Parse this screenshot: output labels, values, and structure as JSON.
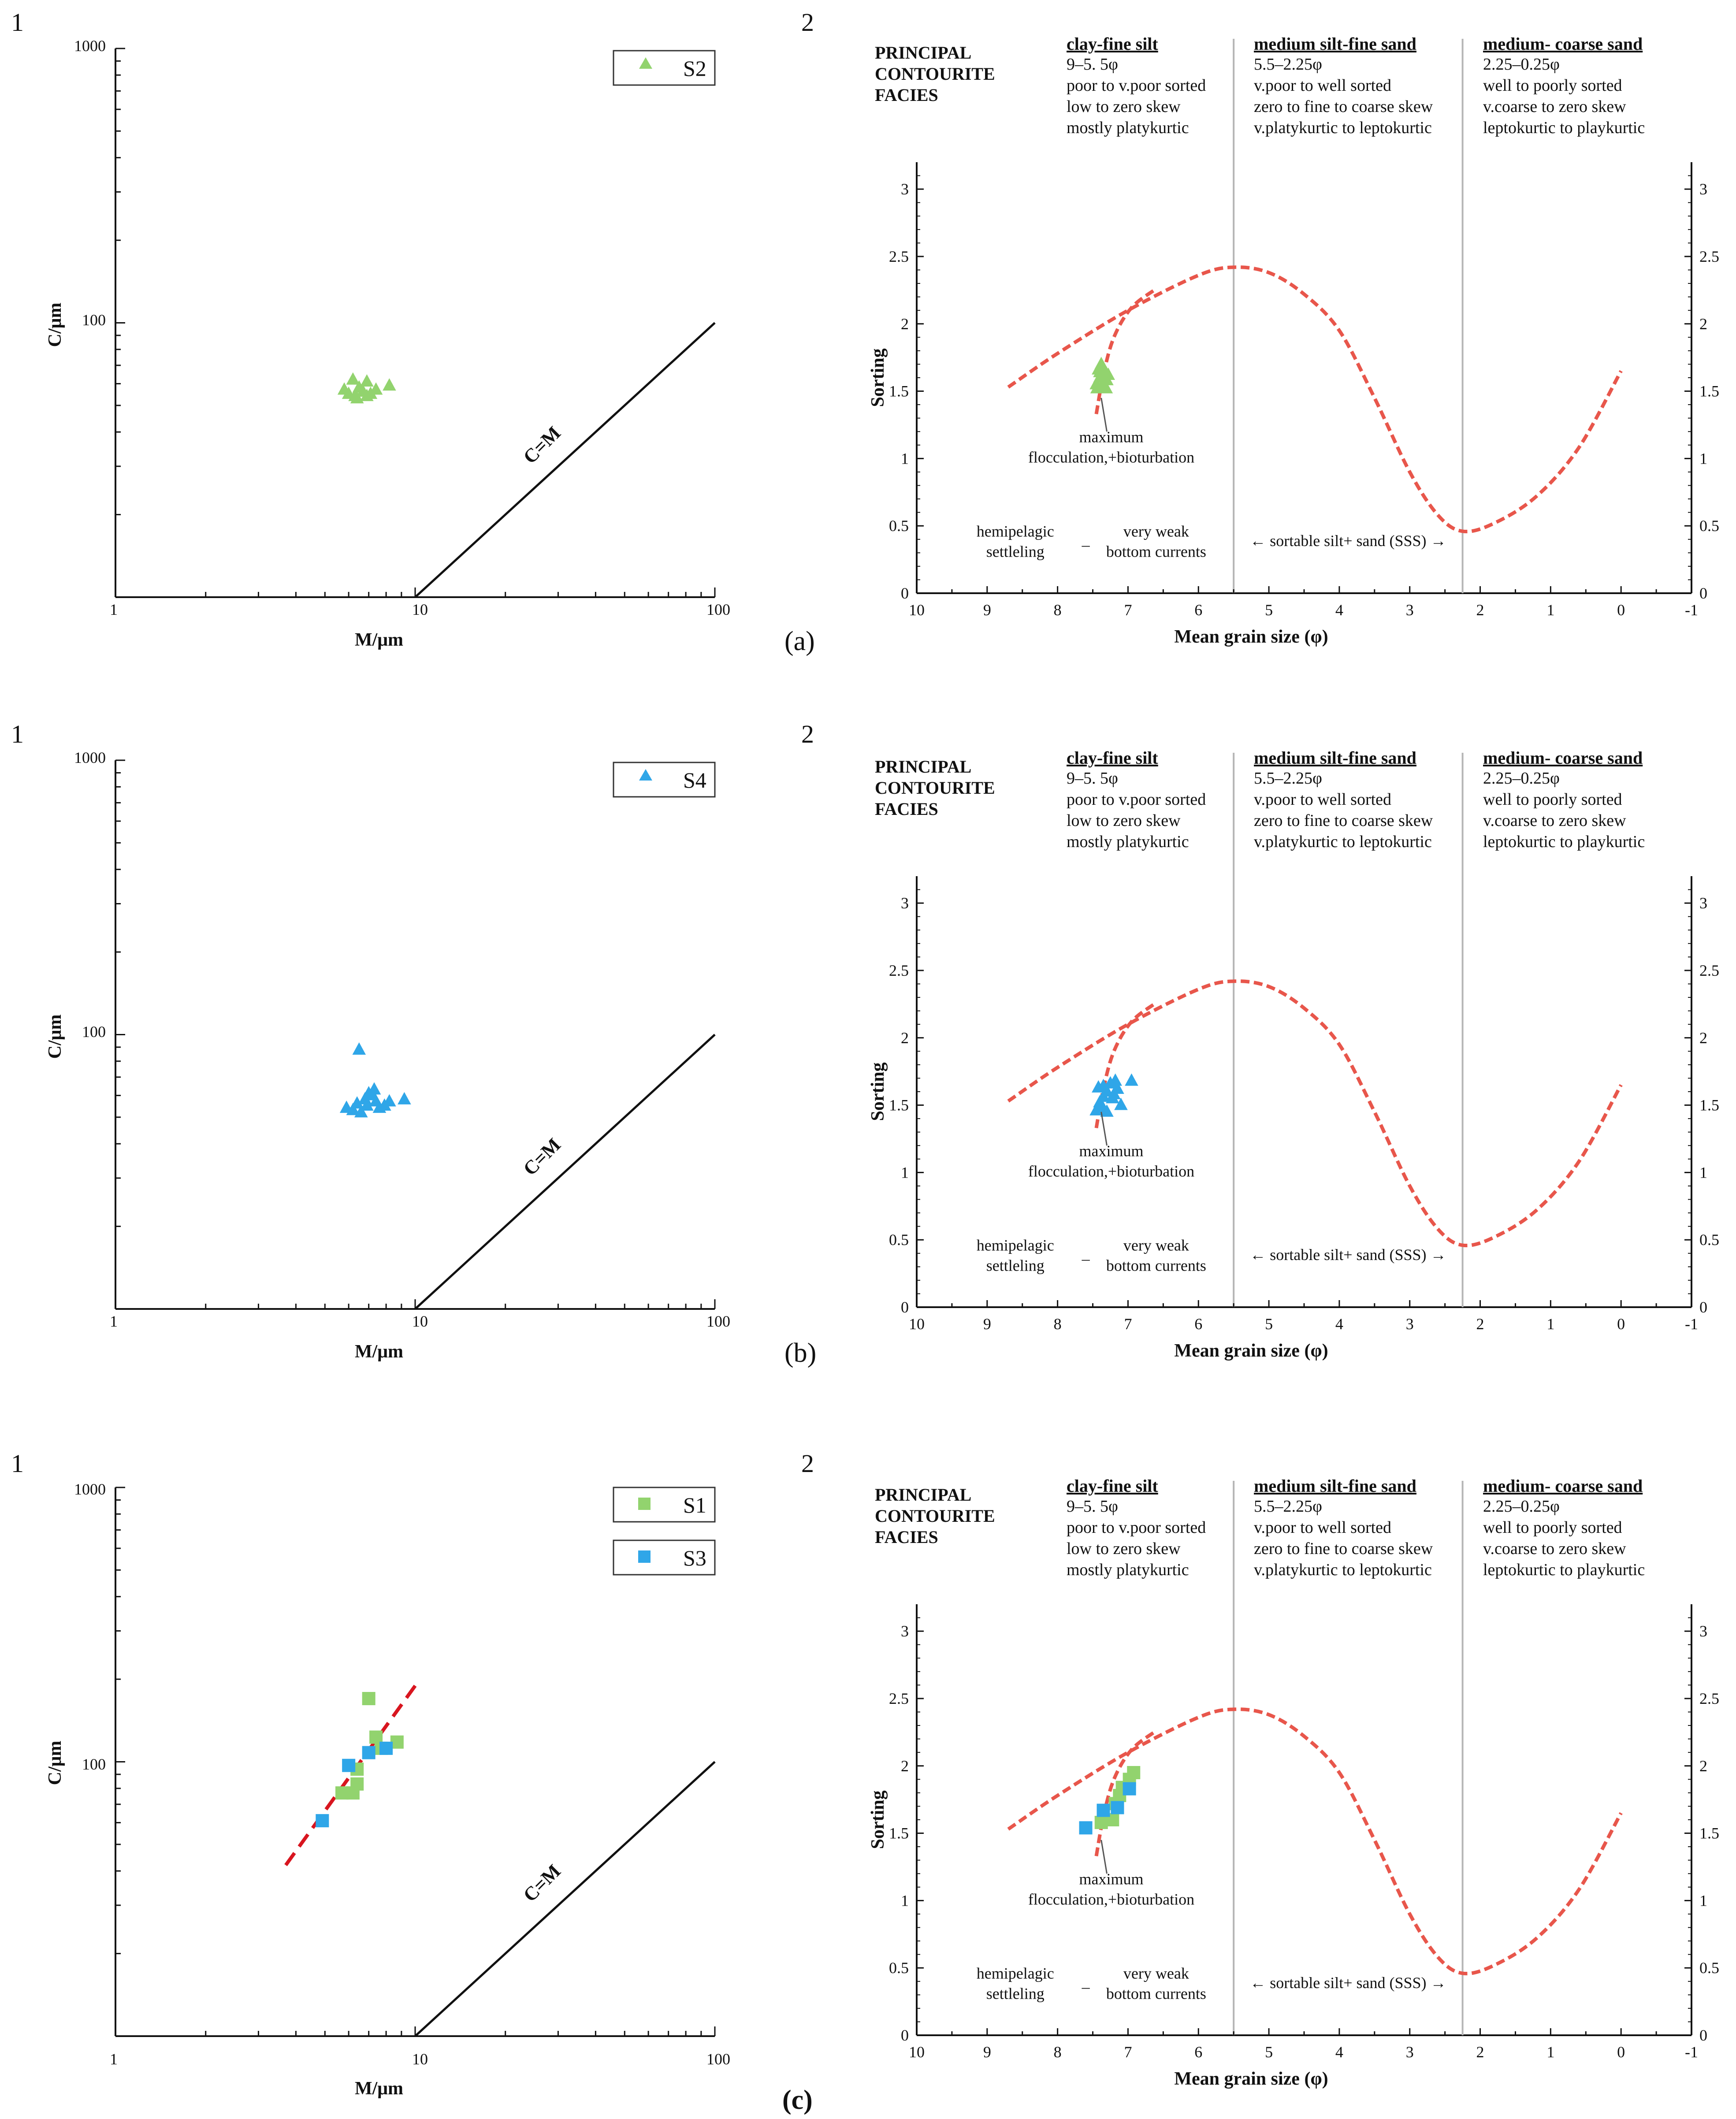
{
  "figure": {
    "panel_number_left": "1",
    "panel_number_right": "2",
    "panel_letters": [
      "(a)",
      "(b)",
      "(c)"
    ]
  },
  "colors": {
    "green": "#92d36e",
    "blue": "#2fa6e8",
    "curve": "#e8564b",
    "trend": "#d8151f",
    "axis": "#111111",
    "boundary": "#b5b5b5"
  },
  "sorting_labels": {
    "title": [
      "PRINCIPAL",
      "CONTOURITE",
      "FACIES"
    ],
    "zones": [
      {
        "heading": "clay-fine silt",
        "lines": [
          "9–5. 5φ",
          "poor to v.poor sorted",
          "low to zero skew",
          "mostly platykurtic"
        ]
      },
      {
        "heading": "medium silt-fine sand",
        "lines": [
          "5.5–2.25φ",
          "v.poor to well sorted",
          "zero to fine to coarse skew",
          "v.platykurtic to leptokurtic"
        ]
      },
      {
        "heading": "medium- coarse sand",
        "lines": [
          "2.25–0.25φ",
          "well to poorly sorted",
          "v.coarse to zero skew",
          "leptokurtic to playkurtic"
        ]
      }
    ],
    "annotation_flocculation": [
      "maximum",
      "flocculation,+bioturbation"
    ],
    "annotation_hemipelagic": [
      "hemipelagic",
      "settleling"
    ],
    "annotation_dash": "–",
    "annotation_weak": [
      "very weak",
      "bottom currents"
    ],
    "annotation_sss": "← sortable silt+ sand (SSS) →"
  },
  "chart_data": [
    {
      "type": "scatter",
      "id": "a1",
      "xscale": "log",
      "yscale": "log",
      "xlabel": "M/μm",
      "ylabel": "C/μm",
      "xlim": [
        1,
        100
      ],
      "ylim": [
        10,
        1000
      ],
      "xticks": [
        "1",
        "10",
        "100"
      ],
      "yticks": [
        "1000",
        "100"
      ],
      "reference_line": {
        "label": "C=M",
        "from": [
          10,
          10
        ],
        "to": [
          100,
          100
        ]
      },
      "series": [
        {
          "name": "S2",
          "marker": "triangle",
          "color": "#92d36e",
          "points": [
            [
              5.8,
              57
            ],
            [
              6.0,
              55
            ],
            [
              6.2,
              62
            ],
            [
              6.3,
              54
            ],
            [
              6.5,
              58
            ],
            [
              6.7,
              56
            ],
            [
              6.9,
              61
            ],
            [
              7.1,
              55
            ],
            [
              7.4,
              57
            ],
            [
              8.2,
              59
            ],
            [
              6.4,
              53
            ],
            [
              6.9,
              54
            ]
          ]
        }
      ]
    },
    {
      "type": "scatter",
      "id": "a2",
      "xlabel": "Mean grain size (φ)",
      "ylabel": "Sorting",
      "xlim": [
        10,
        -1
      ],
      "ylim": [
        0,
        3.2
      ],
      "xticks": [
        "10",
        "9",
        "8",
        "7",
        "6",
        "5",
        "4",
        "3",
        "2",
        "1",
        "0",
        "-1"
      ],
      "yticks": [
        "0",
        "0.5",
        "1",
        "1.5",
        "2",
        "2.5",
        "3"
      ],
      "boundaries": [
        5.5,
        2.25
      ],
      "series": [
        {
          "name": "S2",
          "marker": "triangle",
          "color": "#92d36e",
          "points": [
            [
              7.45,
              1.55
            ],
            [
              7.4,
              1.6
            ],
            [
              7.35,
              1.62
            ],
            [
              7.3,
              1.58
            ],
            [
              7.42,
              1.66
            ],
            [
              7.38,
              1.7
            ],
            [
              7.33,
              1.65
            ],
            [
              7.28,
              1.62
            ],
            [
              7.44,
              1.52
            ],
            [
              7.36,
              1.55
            ],
            [
              7.31,
              1.52
            ],
            [
              7.4,
              1.64
            ]
          ]
        }
      ]
    },
    {
      "type": "scatter",
      "id": "b1",
      "xscale": "log",
      "yscale": "log",
      "xlabel": "M/μm",
      "ylabel": "C/μm",
      "xlim": [
        1,
        100
      ],
      "ylim": [
        10,
        1000
      ],
      "xticks": [
        "1",
        "10",
        "100"
      ],
      "yticks": [
        "1000",
        "100"
      ],
      "reference_line": {
        "label": "C=M",
        "from": [
          10,
          10
        ],
        "to": [
          100,
          100
        ]
      },
      "series": [
        {
          "name": "S4",
          "marker": "triangle",
          "color": "#2fa6e8",
          "points": [
            [
              6.5,
              88
            ],
            [
              5.9,
              54
            ],
            [
              6.2,
              53
            ],
            [
              6.4,
              56
            ],
            [
              6.6,
              52
            ],
            [
              6.8,
              58
            ],
            [
              7.0,
              61
            ],
            [
              7.2,
              60
            ],
            [
              7.4,
              57
            ],
            [
              7.6,
              54
            ],
            [
              7.9,
              55
            ],
            [
              8.2,
              57
            ],
            [
              9.2,
              58
            ],
            [
              6.9,
              55
            ],
            [
              7.3,
              63
            ]
          ]
        }
      ]
    },
    {
      "type": "scatter",
      "id": "b2",
      "xlabel": "Mean grain size (φ)",
      "ylabel": "Sorting",
      "xlim": [
        10,
        -1
      ],
      "ylim": [
        0,
        3.2
      ],
      "xticks": [
        "10",
        "9",
        "8",
        "7",
        "6",
        "5",
        "4",
        "3",
        "2",
        "1",
        "0",
        "-1"
      ],
      "yticks": [
        "0",
        "0.5",
        "1",
        "1.5",
        "2",
        "2.5",
        "3"
      ],
      "boundaries": [
        5.5,
        2.25
      ],
      "series": [
        {
          "name": "S4",
          "marker": "triangle",
          "color": "#2fa6e8",
          "points": [
            [
              7.45,
              1.46
            ],
            [
              7.4,
              1.52
            ],
            [
              7.35,
              1.56
            ],
            [
              7.3,
              1.6
            ],
            [
              7.42,
              1.63
            ],
            [
              7.25,
              1.66
            ],
            [
              7.18,
              1.68
            ],
            [
              7.38,
              1.48
            ],
            [
              7.22,
              1.55
            ],
            [
              7.1,
              1.5
            ],
            [
              6.95,
              1.68
            ],
            [
              7.3,
              1.45
            ],
            [
              7.15,
              1.62
            ],
            [
              7.2,
              1.58
            ],
            [
              7.35,
              1.64
            ]
          ]
        }
      ]
    },
    {
      "type": "scatter",
      "id": "c1",
      "xscale": "log",
      "yscale": "log",
      "xlabel": "M/μm",
      "ylabel": "C/μm",
      "xlim": [
        1,
        100
      ],
      "ylim": [
        10,
        1000
      ],
      "xticks": [
        "1",
        "10",
        "100"
      ],
      "yticks": [
        "1000",
        "100"
      ],
      "reference_line": {
        "label": "C=M",
        "from": [
          10,
          10
        ],
        "to": [
          100,
          100
        ]
      },
      "trend_line": {
        "from": [
          3.7,
          42
        ],
        "to": [
          10.2,
          195
        ]
      },
      "series": [
        {
          "name": "S1",
          "marker": "square",
          "color": "#92d36e",
          "points": [
            [
              5.7,
              77
            ],
            [
              6.2,
              77
            ],
            [
              6.4,
              83
            ],
            [
              6.4,
              94
            ],
            [
              7.0,
              170
            ],
            [
              7.4,
              123
            ],
            [
              7.7,
              112
            ],
            [
              8.7,
              118
            ]
          ]
        },
        {
          "name": "S3",
          "marker": "square",
          "color": "#2fa6e8",
          "points": [
            [
              4.9,
              61
            ],
            [
              6.0,
              97
            ],
            [
              7.0,
              108
            ],
            [
              8.0,
              112
            ]
          ]
        }
      ]
    },
    {
      "type": "scatter",
      "id": "c2",
      "xlabel": "Mean grain size (φ)",
      "ylabel": "Sorting",
      "xlim": [
        10,
        -1
      ],
      "ylim": [
        0,
        3.2
      ],
      "xticks": [
        "10",
        "9",
        "8",
        "7",
        "6",
        "5",
        "4",
        "3",
        "2",
        "1",
        "0",
        "-1"
      ],
      "yticks": [
        "0",
        "0.5",
        "1",
        "1.5",
        "2",
        "2.5",
        "3"
      ],
      "boundaries": [
        5.5,
        2.25
      ],
      "series": [
        {
          "name": "S1",
          "marker": "square",
          "color": "#92d36e",
          "points": [
            [
              7.38,
              1.58
            ],
            [
              7.22,
              1.6
            ],
            [
              7.18,
              1.72
            ],
            [
              7.12,
              1.78
            ],
            [
              7.08,
              1.84
            ],
            [
              6.98,
              1.9
            ],
            [
              6.92,
              1.95
            ]
          ]
        },
        {
          "name": "S3",
          "marker": "square",
          "color": "#2fa6e8",
          "points": [
            [
              7.6,
              1.54
            ],
            [
              7.35,
              1.67
            ],
            [
              7.15,
              1.69
            ],
            [
              6.98,
              1.83
            ]
          ]
        }
      ]
    }
  ]
}
